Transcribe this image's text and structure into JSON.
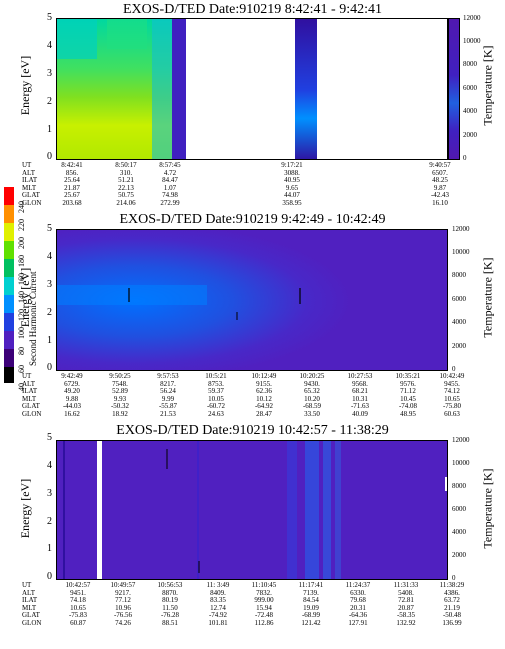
{
  "chart_data": [
    {
      "type": "heatmap",
      "title": "EXOS-D/TED   Date:910219  8:42:41 - 9:42:41",
      "ylabel": "Energy [eV]",
      "y2label": "Temperature [K]",
      "ylim": [
        0,
        5
      ],
      "y2lim": [
        0,
        12000
      ],
      "yticks": [
        "0",
        "0.5",
        "1",
        "1.5",
        "2",
        "2.5",
        "3",
        "3.5",
        "4",
        "4.5",
        "5"
      ],
      "y2ticks": [
        "0",
        "2000",
        "4000",
        "6000",
        "8000",
        "10000",
        "12000"
      ],
      "table": {
        "row_labels": [
          "UT",
          "ALT",
          "ILAT",
          "MLT",
          "GLAT",
          "GLON"
        ],
        "columns": [
          [
            "8:42:41",
            "856.",
            "25.64",
            "21.87",
            "25.67",
            "203.68"
          ],
          [
            "8:50:17",
            "310.",
            "51.21",
            "22.13",
            "50.75",
            "214.06"
          ],
          [
            "8:57:45",
            "4.72",
            "84.47",
            "1.07",
            "74.98",
            "272.99"
          ],
          [
            "9:17:21",
            "3088.",
            "40.95",
            "9.65",
            "44.07",
            "358.95"
          ],
          [
            "9:40:57",
            "6507.",
            "48.25",
            "9.87",
            "-42.43",
            "16.10"
          ]
        ]
      }
    },
    {
      "type": "heatmap",
      "title": "EXOS-D/TED   Date:910219  9:42:49 - 10:42:49",
      "ylabel": "Energy [eV]",
      "y2label": "Temperature [K]",
      "ylim": [
        0,
        5
      ],
      "y2lim": [
        0,
        12000
      ],
      "yticks": [
        "0",
        "0.5",
        "1",
        "1.5",
        "2",
        "2.5",
        "3",
        "3.5",
        "4",
        "4.5",
        "5"
      ],
      "y2ticks": [
        "0",
        "2000",
        "4000",
        "6000",
        "8000",
        "10000",
        "12000"
      ],
      "table": {
        "row_labels": [
          "UT",
          "ALT",
          "ILAT",
          "MLT",
          "GLAT",
          "GLON"
        ],
        "columns": [
          [
            "9:42:49",
            "6729.",
            "49.20",
            "9.88",
            "-44.03",
            "16.62"
          ],
          [
            "9:50:25",
            "7548.",
            "52.89",
            "9.93",
            "-50.32",
            "18.92"
          ],
          [
            "9:57:53",
            "8217.",
            "56.24",
            "9.99",
            "-55.87",
            "21.53"
          ],
          [
            "10:5:21",
            "8753.",
            "59.37",
            "10.05",
            "-60.72",
            "24.63"
          ],
          [
            "10:12:49",
            "9155.",
            "62.36",
            "10.12",
            "-64.92",
            "28.47"
          ],
          [
            "10:20:25",
            "9430.",
            "65.32",
            "10.20",
            "-68.59",
            "33.50"
          ],
          [
            "10:27:53",
            "9568.",
            "68.21",
            "10.31",
            "-71.63",
            "40.09"
          ],
          [
            "10:35:21",
            "9576.",
            "71.12",
            "10.45",
            "-74.08",
            "48.95"
          ],
          [
            "10:42:49",
            "9455.",
            "74.12",
            "10.65",
            "-75.80",
            "60.63"
          ]
        ]
      }
    },
    {
      "type": "heatmap",
      "title": "EXOS-D/TED   Date:910219  10:42:57 - 11:38:29",
      "ylabel": "Energy [eV]",
      "y2label": "Temperature [K]",
      "ylim": [
        0,
        5
      ],
      "y2lim": [
        0,
        12000
      ],
      "yticks": [
        "0",
        "1",
        "2",
        "3",
        "4",
        "5"
      ],
      "y2ticks": [
        "0",
        "2000",
        "4000",
        "6000",
        "8000",
        "10000",
        "12000"
      ],
      "table": {
        "row_labels": [
          "UT",
          "ALT",
          "ILAT",
          "MLT",
          "GLAT",
          "GLON"
        ],
        "columns": [
          [
            "10:42:57",
            "9451.",
            "74.18",
            "10.65",
            "-75.83",
            "60.87"
          ],
          [
            "10:49:57",
            "9217.",
            "77.12",
            "10.96",
            "-76.56",
            "74.26"
          ],
          [
            "10:56:53",
            "8870.",
            "80.19",
            "11.50",
            "-76.28",
            "88.51"
          ],
          [
            "11: 3:49",
            "8409.",
            "83.35",
            "12.74",
            "-74.92",
            "101.81"
          ],
          [
            "11:10:45",
            "7832.",
            "999.00",
            "15.94",
            "-72.48",
            "112.86"
          ],
          [
            "11:17:41",
            "7139.",
            "84.54",
            "19.09",
            "-68.99",
            "121.42"
          ],
          [
            "11:24:37",
            "6330.",
            "79.68",
            "20.31",
            "-64.36",
            "127.91"
          ],
          [
            "11:31:33",
            "5408.",
            "72.81",
            "20.87",
            "-58.35",
            "132.92"
          ],
          [
            "11:38:29",
            "4386.",
            "63.72",
            "21.19",
            "-50.48",
            "136.99"
          ]
        ]
      }
    }
  ],
  "colorbar": {
    "label": "Second Harmonic Current",
    "ticks": [
      "40",
      "60",
      "80",
      "100",
      "120",
      "140",
      "160",
      "180",
      "200",
      "220",
      "240"
    ],
    "colors": [
      "#000000",
      "#3c0078",
      "#5020c0",
      "#2040e0",
      "#0090ff",
      "#00d0d0",
      "#00c060",
      "#60e000",
      "#e0f000",
      "#ff9000",
      "#ff0000"
    ]
  }
}
